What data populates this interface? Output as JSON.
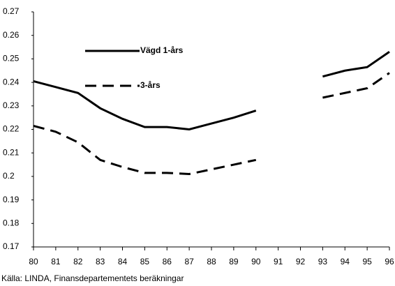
{
  "chart_data": {
    "type": "line",
    "x": [
      80,
      81,
      82,
      83,
      84,
      85,
      86,
      87,
      88,
      89,
      90,
      91,
      92,
      93,
      94,
      95,
      96
    ],
    "xlim": [
      80,
      96
    ],
    "xticks": [
      80,
      81,
      82,
      83,
      84,
      85,
      86,
      87,
      88,
      89,
      90,
      91,
      92,
      93,
      94,
      95,
      96
    ],
    "ylim": [
      0.17,
      0.27
    ],
    "yticks": [
      0.17,
      0.18,
      0.19,
      0.2,
      0.21,
      0.22,
      0.23,
      0.24,
      0.25,
      0.26,
      0.27
    ],
    "grid": false,
    "series": [
      {
        "name": "Vägd 1-års",
        "color": "#000000",
        "dash": false,
        "values": [
          0.2405,
          0.238,
          0.2355,
          0.229,
          0.2245,
          0.221,
          0.221,
          0.22,
          0.2225,
          0.225,
          0.228,
          null,
          null,
          0.2425,
          0.245,
          0.2465,
          0.253
        ]
      },
      {
        "name": "3-års",
        "color": "#000000",
        "dash": true,
        "values": [
          0.2215,
          0.219,
          0.2145,
          0.207,
          0.204,
          0.2015,
          0.2015,
          0.201,
          0.203,
          0.205,
          0.207,
          null,
          null,
          0.2335,
          0.2355,
          0.2375,
          0.244
        ]
      }
    ],
    "source": "Källa: LINDA, Finansdepartementets beräkningar"
  }
}
